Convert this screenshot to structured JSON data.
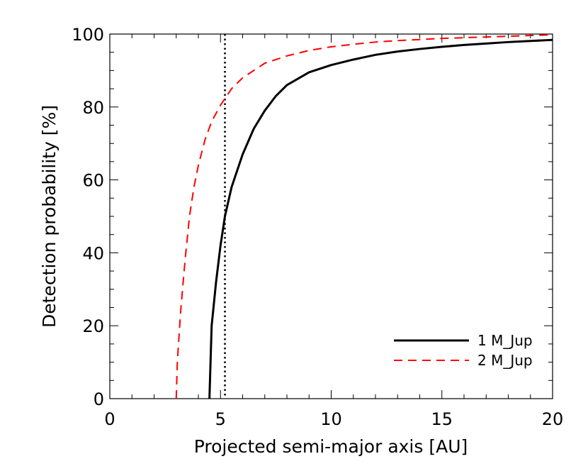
{
  "chart_data": {
    "type": "line",
    "title": "",
    "xlabel": "Projected semi-major axis [AU]",
    "ylabel": "Detection probability [%]",
    "xlim": [
      0,
      20
    ],
    "ylim": [
      0,
      100
    ],
    "x_ticks": [
      0,
      5,
      10,
      15,
      20
    ],
    "x_tick_labels": [
      "0",
      "5",
      "10",
      "15",
      "20"
    ],
    "y_ticks": [
      0,
      20,
      40,
      60,
      80,
      100
    ],
    "y_tick_labels": [
      "0",
      "20",
      "40",
      "60",
      "80",
      "100"
    ],
    "grid": false,
    "legend_position": "bottom-right",
    "reference_line": {
      "x": 5.2,
      "style": "dotted",
      "color": "#000000"
    },
    "series": [
      {
        "name": "1 M_Jup",
        "color": "#000000",
        "style": "solid",
        "x": [
          4.5,
          4.6,
          4.7,
          4.8,
          5.0,
          5.2,
          5.5,
          6.0,
          6.5,
          7.0,
          7.5,
          8.0,
          9.0,
          10.0,
          11.0,
          12.0,
          13.0,
          14.0,
          15.0,
          16.0,
          17.0,
          18.0,
          19.0,
          20.0
        ],
        "values": [
          0,
          20,
          26,
          32,
          42,
          50,
          58,
          67,
          74,
          79,
          83,
          86,
          89.5,
          91.5,
          93,
          94.3,
          95.2,
          95.9,
          96.5,
          97.0,
          97.4,
          97.8,
          98.1,
          98.4
        ]
      },
      {
        "name": "2 M_Jup",
        "color": "#ff0000",
        "style": "dashed",
        "x": [
          3.0,
          3.05,
          3.2,
          3.4,
          3.6,
          3.8,
          4.0,
          4.3,
          4.6,
          5.0,
          5.5,
          6.0,
          7.0,
          8.0,
          9.0,
          10.0,
          11.0,
          12.0,
          13.0,
          14.0,
          15.0,
          16.0,
          17.0,
          18.0,
          19.0,
          20.0
        ],
        "values": [
          0,
          10,
          24,
          38,
          50,
          58,
          64,
          71,
          76,
          80.5,
          85,
          88,
          92,
          94,
          95.5,
          96.5,
          97.2,
          97.8,
          98.2,
          98.5,
          98.8,
          99.0,
          99.2,
          99.4,
          99.6,
          99.8
        ]
      }
    ]
  }
}
